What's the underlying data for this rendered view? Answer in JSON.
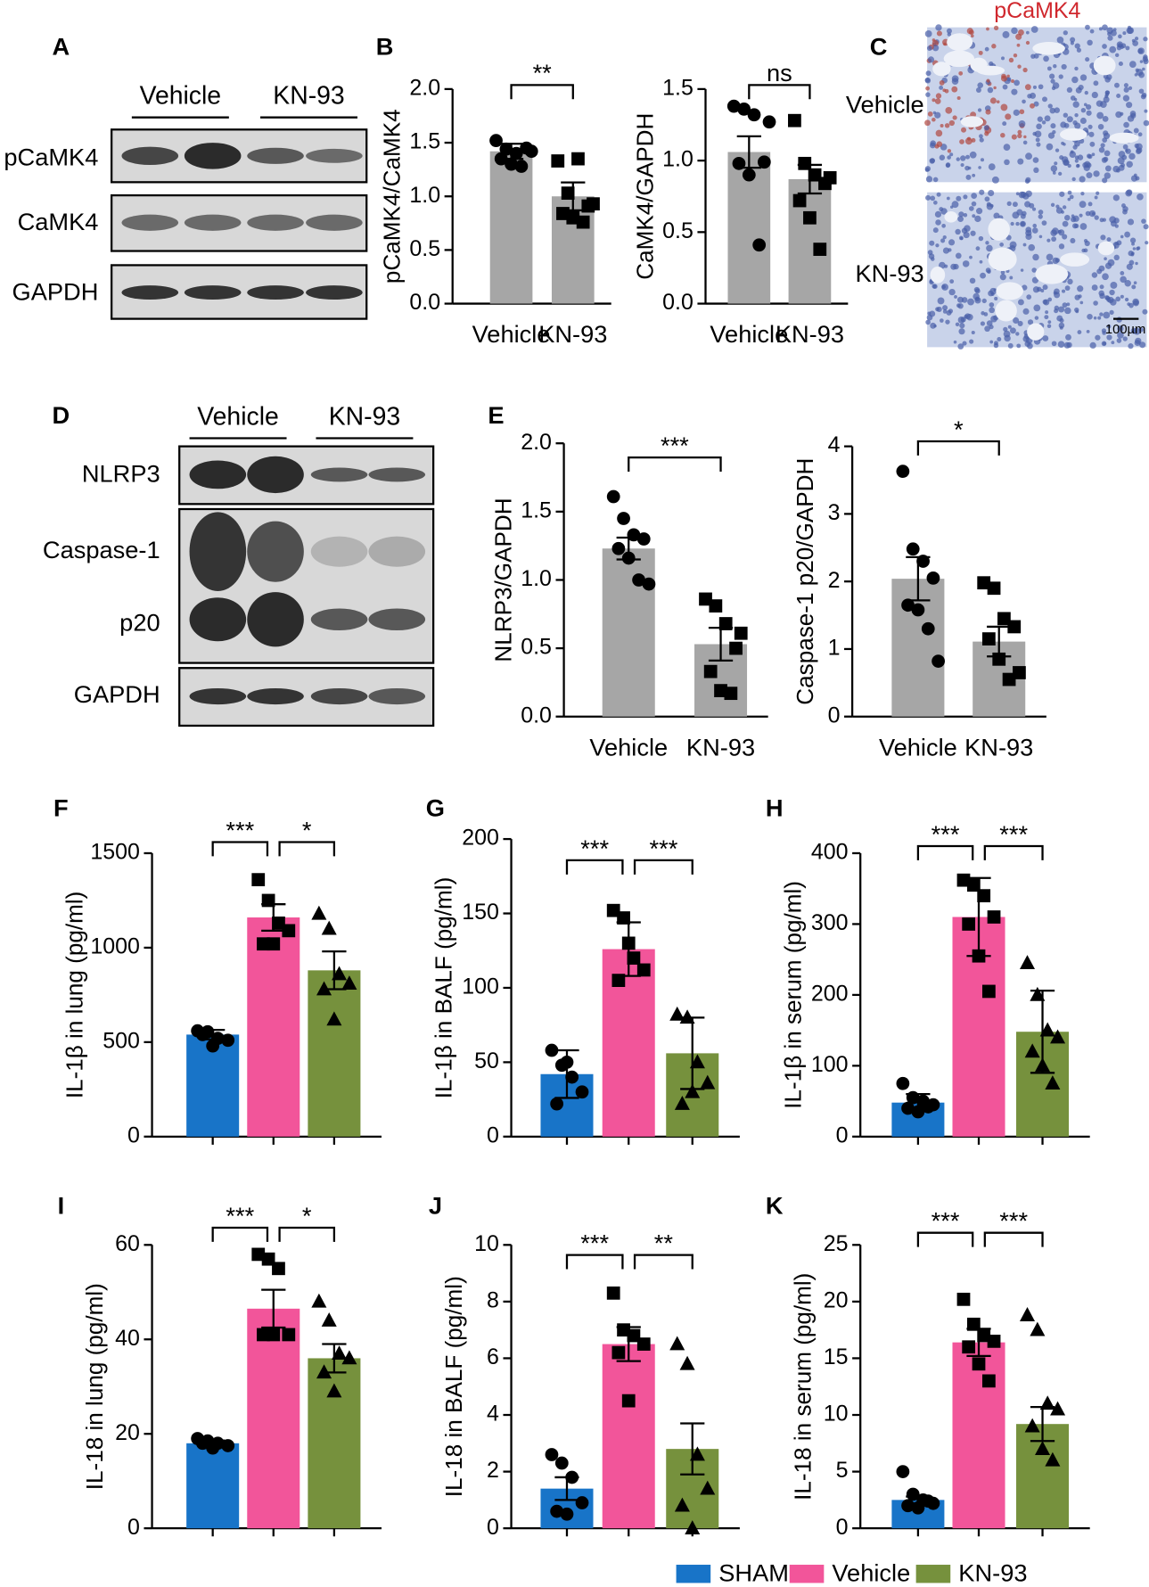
{
  "panel_labels": [
    "A",
    "B",
    "C",
    "D",
    "E",
    "F",
    "G",
    "H",
    "I",
    "J",
    "K"
  ],
  "blot_A": {
    "groups": [
      "Vehicle",
      "KN-93"
    ],
    "rows": [
      "pCaMK4",
      "CaMK4",
      "GAPDH"
    ]
  },
  "histology_C": {
    "title": "pCaMK4",
    "rows": [
      "Vehicle",
      "KN-93"
    ],
    "scale_bar": "100µm"
  },
  "blot_D": {
    "groups": [
      "Vehicle",
      "KN-93"
    ],
    "rows": [
      "NLRP3",
      "Caspase-1",
      "p20",
      "GAPDH"
    ]
  },
  "legend": {
    "series": [
      {
        "name": "SHAM",
        "color": "#1874c8"
      },
      {
        "name": "Vehicle",
        "color": "#f2559a"
      },
      {
        "name": "KN-93",
        "color": "#76913d"
      }
    ]
  },
  "chart_data": [
    {
      "type": "bar",
      "ylabel": "pCaMK4/CaMK4",
      "categories": [
        "Vehicle",
        "KN-93"
      ],
      "color": "#a6a6a6",
      "values": [
        1.42,
        1.0
      ],
      "errors": [
        0.07,
        0.13
      ],
      "points": [
        [
          1.52,
          1.44,
          1.4,
          1.45,
          1.35,
          1.3,
          1.28,
          1.42
        ],
        [
          1.33,
          1.03,
          1.35,
          0.91,
          0.84,
          0.8,
          0.76,
          0.93
        ]
      ],
      "ylim": [
        0,
        2
      ],
      "yticks": [
        {
          "value": 0,
          "label": "0.0"
        },
        0.5,
        {
          "value": 1,
          "label": "1.0"
        },
        1.5,
        {
          "value": 2,
          "label": "2.0"
        }
      ],
      "annotations": [
        "**"
      ]
    },
    {
      "type": "bar",
      "ylabel": "CaMK4/GAPDH",
      "categories": [
        "Vehicle",
        "KN-93"
      ],
      "color": "#a6a6a6",
      "values": [
        1.06,
        0.87
      ],
      "errors": [
        0.11,
        0.1
      ],
      "points": [
        [
          1.38,
          1.36,
          1.32,
          0.99,
          0.98,
          0.9,
          0.41,
          1.27
        ],
        [
          1.28,
          0.98,
          0.9,
          0.84,
          0.72,
          0.6,
          0.38,
          0.88
        ]
      ],
      "ylim": [
        0,
        1.5
      ],
      "yticks": [
        {
          "value": 0,
          "label": "0.0"
        },
        0.5,
        {
          "value": 1,
          "label": "1.0"
        },
        1.5
      ],
      "annotations": [
        "ns"
      ]
    },
    {
      "type": "bar",
      "ylabel": "NLRP3/GAPDH",
      "categories": [
        "Vehicle",
        "KN-93"
      ],
      "color": "#a6a6a6",
      "values": [
        1.23,
        0.53
      ],
      "errors": [
        0.08,
        0.12
      ],
      "points": [
        [
          1.61,
          1.45,
          1.33,
          1.3,
          1.23,
          1.16,
          1.0,
          0.97
        ],
        [
          0.86,
          0.81,
          0.68,
          0.5,
          0.33,
          0.19,
          0.17,
          0.61
        ]
      ],
      "ylim": [
        0,
        2
      ],
      "yticks": [
        {
          "value": 0,
          "label": "0.0"
        },
        0.5,
        {
          "value": 1,
          "label": "1.0"
        },
        1.5,
        {
          "value": 2,
          "label": "2.0"
        }
      ],
      "annotations": [
        "***"
      ]
    },
    {
      "type": "bar",
      "ylabel": "Caspase-1 p20/GAPDH",
      "categories": [
        "Vehicle",
        "KN-93"
      ],
      "color": "#a6a6a6",
      "values": [
        2.04,
        1.11
      ],
      "errors": [
        0.32,
        0.22
      ],
      "points": [
        [
          3.63,
          2.48,
          2.3,
          2.05,
          1.65,
          1.58,
          1.3,
          0.82
        ],
        [
          1.98,
          1.9,
          1.45,
          1.33,
          1.15,
          0.85,
          0.55,
          0.65
        ]
      ],
      "ylim": [
        0,
        4
      ],
      "yticks": [
        0,
        1,
        2,
        3,
        4
      ],
      "annotations": [
        "*"
      ]
    },
    {
      "type": "bar",
      "ylabel": "IL-1β in lung (pg/ml)",
      "categories": [
        null,
        null,
        null
      ],
      "values": [
        540,
        1160,
        880
      ],
      "errors": [
        25,
        70,
        100
      ],
      "points": [
        [
          560,
          555,
          520,
          510,
          540,
          480
        ],
        [
          1360,
          1250,
          1130,
          1090,
          1020,
          1020
        ],
        [
          1180,
          1100,
          860,
          810,
          780,
          620
        ]
      ],
      "ylim": [
        0,
        1500
      ],
      "yticks": [
        0,
        500,
        1000,
        1500
      ],
      "annotations": [
        "***",
        "*"
      ]
    },
    {
      "type": "bar",
      "ylabel": "IL-1β in BALF (pg/ml)",
      "categories": [
        null,
        null,
        null
      ],
      "values": [
        42,
        126,
        56
      ],
      "errors": [
        16,
        18,
        24
      ],
      "points": [
        [
          58,
          48,
          40,
          30,
          22,
          50
        ],
        [
          152,
          147,
          120,
          112,
          105,
          130
        ],
        [
          82,
          80,
          50,
          36,
          22,
          30
        ]
      ],
      "ylim": [
        0,
        200
      ],
      "yticks": [
        0,
        50,
        100,
        150,
        200
      ],
      "annotations": [
        "***",
        "***"
      ]
    },
    {
      "type": "bar",
      "ylabel": "IL-1β in serum (pg/ml)",
      "categories": [
        null,
        null,
        null
      ],
      "values": [
        48,
        310,
        148
      ],
      "errors": [
        12,
        55,
        58
      ],
      "points": [
        [
          75,
          55,
          50,
          45,
          40,
          35,
          42
        ],
        [
          362,
          355,
          340,
          310,
          300,
          255,
          205
        ],
        [
          245,
          200,
          150,
          140,
          120,
          100,
          75
        ]
      ],
      "ylim": [
        0,
        400
      ],
      "yticks": [
        0,
        100,
        200,
        300,
        400
      ],
      "annotations": [
        "***",
        "***"
      ]
    },
    {
      "type": "bar",
      "ylabel": "IL-18 in lung (pg/ml)",
      "categories": [
        null,
        null,
        null
      ],
      "values": [
        18,
        46.5,
        36
      ],
      "errors": [
        0.6,
        4,
        3
      ],
      "points": [
        [
          19,
          18.5,
          18,
          17.5,
          18,
          17
        ],
        [
          58,
          57,
          55,
          41,
          41,
          41
        ],
        [
          48,
          44,
          37,
          36,
          33,
          29
        ]
      ],
      "ylim": [
        0,
        60
      ],
      "yticks": [
        0,
        20,
        40,
        60
      ],
      "annotations": [
        "***",
        "*"
      ]
    },
    {
      "type": "bar",
      "ylabel": "IL-18 in BALF (pg/ml)",
      "categories": [
        null,
        null,
        null
      ],
      "values": [
        1.4,
        6.5,
        2.8
      ],
      "errors": [
        0.4,
        0.6,
        0.9
      ],
      "points": [
        [
          2.6,
          2.3,
          1.8,
          0.9,
          0.6,
          0.5
        ],
        [
          8.3,
          7.0,
          6.8,
          6.5,
          6.2,
          4.5
        ],
        [
          6.5,
          5.8,
          2.6,
          1.4,
          0.8,
          0
        ]
      ],
      "ylim": [
        0,
        10
      ],
      "yticks": [
        0,
        2,
        4,
        6,
        8,
        10
      ],
      "annotations": [
        "***",
        "**"
      ]
    },
    {
      "type": "bar",
      "ylabel": "IL-18 in serum (pg/ml)",
      "categories": [
        null,
        null,
        null
      ],
      "values": [
        2.5,
        16.4,
        9.2
      ],
      "errors": [
        0.3,
        1.2,
        1.5
      ],
      "points": [
        [
          5,
          3,
          2.5,
          2.2,
          2,
          1.8,
          2.4
        ],
        [
          20.2,
          18,
          17,
          16.5,
          16,
          14.5,
          13
        ],
        [
          18.8,
          17.5,
          11,
          10.5,
          9,
          7,
          6
        ]
      ],
      "ylim": [
        0,
        25
      ],
      "yticks": [
        0,
        5,
        10,
        15,
        20,
        25
      ],
      "annotations": [
        "***",
        "***"
      ]
    }
  ]
}
